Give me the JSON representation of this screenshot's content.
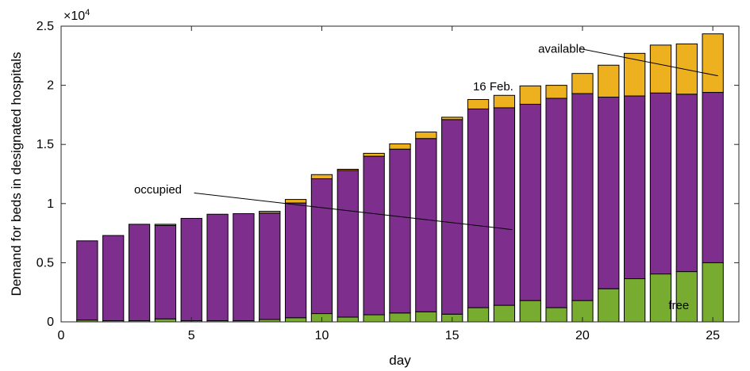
{
  "chart_data": {
    "type": "bar",
    "stacked": true,
    "title": "",
    "xlabel": "day",
    "ylabel": "Demand for beds in designated hospitals",
    "y_exponent_label": "×10",
    "y_exponent_power": "4",
    "xlim": [
      0,
      26
    ],
    "ylim": [
      0,
      25000
    ],
    "x_ticks": [
      0,
      5,
      10,
      15,
      20,
      25
    ],
    "y_ticks": [
      0,
      5000,
      10000,
      15000,
      20000,
      25000
    ],
    "y_tick_labels": [
      "0",
      "0.5",
      "1",
      "1.5",
      "2",
      "2.5"
    ],
    "grid": false,
    "legend": "none",
    "x": [
      1,
      2,
      3,
      4,
      5,
      6,
      7,
      8,
      9,
      10,
      11,
      12,
      13,
      14,
      15,
      16,
      17,
      18,
      19,
      20,
      21,
      22,
      23,
      24,
      25
    ],
    "series": [
      {
        "name": "free",
        "color": "#77AC30",
        "values": [
          150,
          100,
          100,
          250,
          100,
          100,
          100,
          200,
          350,
          700,
          400,
          600,
          750,
          850,
          650,
          1200,
          1400,
          1800,
          1200,
          1800,
          2800,
          3650,
          4050,
          4250,
          5000
        ]
      },
      {
        "name": "occupied",
        "color": "#7E2F8E",
        "values": [
          6700,
          7200,
          8150,
          7900,
          8650,
          9000,
          9050,
          9000,
          9700,
          11400,
          12400,
          13400,
          13850,
          14650,
          16450,
          16800,
          16700,
          16600,
          17700,
          17500,
          16200,
          15450,
          15300,
          15000,
          14400
        ]
      },
      {
        "name": "available",
        "color": "#EDB120",
        "values": [
          0,
          0,
          0,
          100,
          0,
          0,
          0,
          150,
          300,
          350,
          100,
          250,
          450,
          550,
          200,
          800,
          1050,
          1550,
          1100,
          1700,
          2700,
          3600,
          4050,
          4250,
          4950
        ]
      }
    ],
    "annotations": [
      {
        "text": "available",
        "label_x": 18.3,
        "label_y": 23100,
        "line_from": [
          19.9,
          23100
        ],
        "line_to": [
          25.2,
          20800
        ]
      },
      {
        "text": "16 Feb.",
        "label_x": 15.8,
        "label_y": 19900
      },
      {
        "text": "occupied",
        "label_x": 2.8,
        "label_y": 11200,
        "line_from": [
          5.1,
          10900
        ],
        "line_to": [
          17.3,
          7800
        ]
      },
      {
        "text": "free",
        "label_x": 23.3,
        "label_y": 1400
      }
    ]
  }
}
